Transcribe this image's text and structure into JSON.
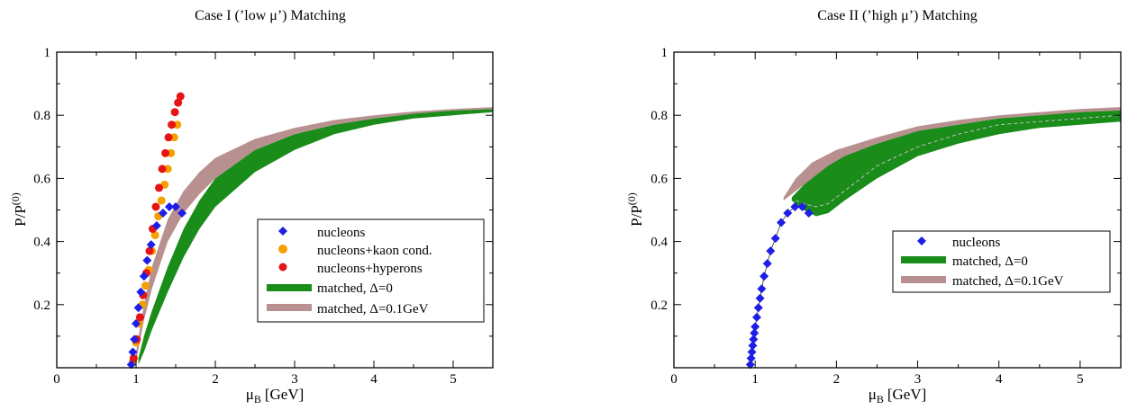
{
  "figure": {
    "panels": 2
  },
  "colors": {
    "nucleons": "#1e1ee6",
    "kaon": "#f5a000",
    "hyperons": "#e61414",
    "band_d0": "#1a8c1a",
    "band_d01": "#b89090",
    "dashed": "#bfbfbf"
  },
  "chart_data": [
    {
      "type": "scatter",
      "title": "Case I (’low μ’) Matching",
      "xlabel_main": "μ",
      "xlabel_sub": "B",
      "xlabel_unit": "[GeV]",
      "ylabel_main": "P/P",
      "ylabel_sup": "(0)",
      "xlim": [
        0,
        5.5
      ],
      "ylim": [
        0,
        1.0
      ],
      "xticks": [
        0,
        1,
        2,
        3,
        4,
        5
      ],
      "yticks": [
        0.2,
        0.4,
        0.6,
        0.8,
        1
      ],
      "ytick_labels": [
        "0.2",
        "0.4",
        "0.6",
        "0.8",
        "1"
      ],
      "series": [
        {
          "name": "nucleons",
          "kind": "diamond",
          "color_key": "nucleons",
          "x": [
            0.94,
            0.96,
            0.98,
            1.0,
            1.03,
            1.06,
            1.1,
            1.14,
            1.19,
            1.26,
            1.34,
            1.42,
            1.5,
            1.58
          ],
          "y": [
            0.01,
            0.05,
            0.09,
            0.14,
            0.19,
            0.24,
            0.29,
            0.34,
            0.39,
            0.45,
            0.49,
            0.51,
            0.51,
            0.49
          ]
        },
        {
          "name": "nucleons+kaon cond.",
          "kind": "circle",
          "color_key": "kaon",
          "x": [
            0.96,
            1.0,
            1.04,
            1.08,
            1.12,
            1.16,
            1.2,
            1.24,
            1.28,
            1.32,
            1.36,
            1.4,
            1.44,
            1.48,
            1.52
          ],
          "y": [
            0.02,
            0.08,
            0.14,
            0.2,
            0.26,
            0.31,
            0.37,
            0.42,
            0.48,
            0.53,
            0.58,
            0.63,
            0.68,
            0.73,
            0.77
          ]
        },
        {
          "name": "nucleons+hyperons",
          "kind": "circle",
          "color_key": "hyperons",
          "x": [
            0.97,
            1.01,
            1.05,
            1.09,
            1.13,
            1.17,
            1.21,
            1.25,
            1.29,
            1.33,
            1.37,
            1.41,
            1.45,
            1.49,
            1.53,
            1.56
          ],
          "y": [
            0.03,
            0.09,
            0.16,
            0.23,
            0.3,
            0.37,
            0.44,
            0.51,
            0.57,
            0.63,
            0.68,
            0.73,
            0.77,
            0.81,
            0.84,
            0.86
          ]
        }
      ],
      "bands": [
        {
          "name": "matched, Δ=0",
          "color_key": "band_d0",
          "x": [
            1.03,
            1.1,
            1.2,
            1.4,
            1.6,
            1.8,
            2.0,
            2.5,
            3.0,
            3.5,
            4.0,
            4.5,
            5.0,
            5.5
          ],
          "lower": [
            0.01,
            0.05,
            0.12,
            0.24,
            0.35,
            0.44,
            0.51,
            0.62,
            0.69,
            0.74,
            0.77,
            0.79,
            0.8,
            0.81
          ],
          "upper": [
            0.03,
            0.1,
            0.18,
            0.32,
            0.44,
            0.53,
            0.6,
            0.69,
            0.74,
            0.77,
            0.79,
            0.805,
            0.815,
            0.82
          ]
        },
        {
          "name": "matched, Δ=0.1GeV",
          "color_key": "band_d01",
          "x": [
            1.0,
            1.1,
            1.2,
            1.4,
            1.6,
            1.8,
            2.0,
            2.5,
            3.0,
            3.5,
            4.0,
            4.5,
            5.0,
            5.5
          ],
          "lower": [
            0.02,
            0.15,
            0.25,
            0.4,
            0.49,
            0.55,
            0.6,
            0.69,
            0.74,
            0.77,
            0.79,
            0.805,
            0.815,
            0.82
          ],
          "upper": [
            0.05,
            0.2,
            0.32,
            0.47,
            0.56,
            0.62,
            0.665,
            0.725,
            0.76,
            0.785,
            0.8,
            0.812,
            0.82,
            0.826
          ]
        }
      ],
      "legend": {
        "position": "center-right",
        "entries": [
          {
            "label": "nucleons",
            "symbol": "diamond",
            "color_key": "nucleons"
          },
          {
            "label": "nucleons+kaon cond.",
            "symbol": "circle",
            "color_key": "kaon"
          },
          {
            "label": "nucleons+hyperons",
            "symbol": "circle",
            "color_key": "hyperons"
          },
          {
            "label": "matched, Δ=0",
            "symbol": "bar",
            "color_key": "band_d0"
          },
          {
            "label": "matched, Δ=0.1GeV",
            "symbol": "bar",
            "color_key": "band_d01"
          }
        ]
      }
    },
    {
      "type": "scatter",
      "title": "Case II (’high μ’) Matching",
      "xlabel_main": "μ",
      "xlabel_sub": "B",
      "xlabel_unit": "[GeV]",
      "ylabel_main": "P/P",
      "ylabel_sup": "(0)",
      "xlim": [
        0,
        5.5
      ],
      "ylim": [
        0,
        1.0
      ],
      "xticks": [
        0,
        1,
        2,
        3,
        4,
        5
      ],
      "yticks": [
        0.2,
        0.4,
        0.6,
        0.8,
        1
      ],
      "ytick_labels": [
        "0.2",
        "0.4",
        "0.6",
        "0.8",
        "1"
      ],
      "series": [
        {
          "name": "nucleons",
          "kind": "diamond",
          "color_key": "nucleons",
          "x": [
            0.94,
            0.95,
            0.96,
            0.97,
            0.98,
            0.99,
            1.0,
            1.02,
            1.04,
            1.06,
            1.08,
            1.11,
            1.15,
            1.19,
            1.25,
            1.32,
            1.4,
            1.49,
            1.58,
            1.66
          ],
          "y": [
            0.01,
            0.03,
            0.05,
            0.07,
            0.09,
            0.11,
            0.13,
            0.16,
            0.19,
            0.22,
            0.25,
            0.29,
            0.33,
            0.37,
            0.41,
            0.46,
            0.49,
            0.51,
            0.51,
            0.49
          ]
        }
      ],
      "bands": [
        {
          "name": "matched, Δ=0",
          "color_key": "band_d0",
          "x": [
            1.45,
            1.6,
            1.75,
            1.9,
            2.1,
            2.5,
            3.0,
            3.5,
            4.0,
            4.5,
            5.0,
            5.5
          ],
          "lower": [
            0.53,
            0.5,
            0.48,
            0.49,
            0.53,
            0.6,
            0.67,
            0.71,
            0.74,
            0.76,
            0.77,
            0.78
          ],
          "upper": [
            0.54,
            0.58,
            0.61,
            0.64,
            0.67,
            0.71,
            0.75,
            0.77,
            0.79,
            0.8,
            0.81,
            0.815
          ]
        },
        {
          "name": "matched, Δ=0.1GeV",
          "color_key": "band_d01",
          "x": [
            1.35,
            1.5,
            1.7,
            2.0,
            2.5,
            3.0,
            3.5,
            4.0,
            4.5,
            5.0,
            5.5
          ],
          "lower": [
            0.53,
            0.56,
            0.6,
            0.65,
            0.71,
            0.75,
            0.77,
            0.79,
            0.8,
            0.81,
            0.815
          ],
          "upper": [
            0.54,
            0.6,
            0.65,
            0.69,
            0.73,
            0.765,
            0.785,
            0.8,
            0.81,
            0.82,
            0.826
          ]
        }
      ],
      "dashed_line": {
        "x": [
          1.5,
          1.6,
          1.75,
          1.9,
          2.1,
          2.5,
          3.0,
          3.5,
          4.0,
          4.5,
          5.0,
          5.5
        ],
        "y": [
          0.53,
          0.52,
          0.51,
          0.52,
          0.56,
          0.64,
          0.7,
          0.74,
          0.77,
          0.78,
          0.79,
          0.8
        ]
      },
      "legend": {
        "position": "center-right",
        "entries": [
          {
            "label": "nucleons",
            "symbol": "diamond",
            "color_key": "nucleons"
          },
          {
            "label": "matched, Δ=0",
            "symbol": "bar",
            "color_key": "band_d0"
          },
          {
            "label": "matched, Δ=0.1GeV",
            "symbol": "bar",
            "color_key": "band_d01"
          }
        ]
      }
    }
  ]
}
